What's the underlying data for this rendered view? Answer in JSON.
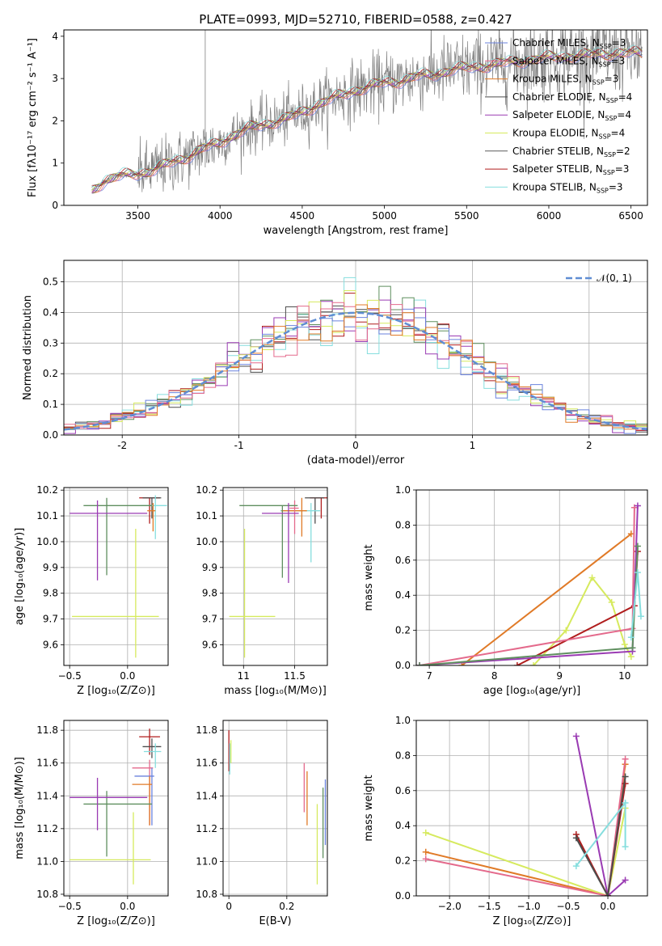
{
  "title": "PLATE=0993, MJD=52710, FIBERID=0588, z=0.427",
  "legend": [
    {
      "label": "Chabrier MILES, N",
      "sub": "SSP",
      "tail": "=3"
    },
    {
      "label": "Salpeter MILES, N",
      "sub": "SSP",
      "tail": "=3"
    },
    {
      "label": "Kroupa MILES, N",
      "sub": "SSP",
      "tail": "=3"
    },
    {
      "label": "Chabrier ELODIE, N",
      "sub": "SSP",
      "tail": "=4"
    },
    {
      "label": "Salpeter ELODIE, N",
      "sub": "SSP",
      "tail": "=4"
    },
    {
      "label": "Kroupa ELODIE, N",
      "sub": "SSP",
      "tail": "=4"
    },
    {
      "label": "Chabrier STELIB, N",
      "sub": "SSP",
      "tail": "=2"
    },
    {
      "label": "Salpeter STELIB, N",
      "sub": "SSP",
      "tail": "=3"
    },
    {
      "label": "Kroupa STELIB, N",
      "sub": "SSP",
      "tail": "=3"
    }
  ],
  "colors": {
    "data": "#808080",
    "models": [
      "#6a82dd",
      "#e46a8c",
      "#e07a27",
      "#4d4d4d",
      "#9a3bb3",
      "#d6ea5e",
      "#5a5a5a",
      "#b01d1d",
      "#86dede"
    ],
    "fit_models": [
      "#4d4d4d",
      "#b01d1d",
      "#86dede",
      "#5f8f5f",
      "#9a3bb3",
      "#d6ea5e",
      "#6a82dd",
      "#e46a8c",
      "#e07a27"
    ],
    "normal_curve": "#5f8dd3"
  },
  "chart_data": [
    {
      "type": "line",
      "name": "spectrum",
      "xlabel": "wavelength [Angstrom, rest frame]",
      "ylabel": "Flux [fλ10⁻¹⁷ erg cm⁻² s⁻¹ A⁻¹]",
      "xlim": [
        3050,
        6600
      ],
      "ylim": [
        0,
        4.15
      ],
      "xticks": [
        3500,
        4000,
        4500,
        5000,
        5500,
        6000,
        6500
      ],
      "yticks": [
        0,
        1,
        2,
        3,
        4
      ],
      "continuum": [
        [
          3220,
          0.35
        ],
        [
          3300,
          0.6
        ],
        [
          3400,
          0.7
        ],
        [
          3500,
          0.75
        ],
        [
          3600,
          0.85
        ],
        [
          3700,
          1.0
        ],
        [
          3800,
          1.15
        ],
        [
          3900,
          1.35
        ],
        [
          3980,
          1.45
        ],
        [
          4100,
          1.7
        ],
        [
          4200,
          1.85
        ],
        [
          4300,
          1.95
        ],
        [
          4400,
          2.05
        ],
        [
          4500,
          2.2
        ],
        [
          4600,
          2.4
        ],
        [
          4700,
          2.55
        ],
        [
          4800,
          2.7
        ],
        [
          4900,
          2.8
        ],
        [
          5000,
          2.9
        ],
        [
          5100,
          2.95
        ],
        [
          5200,
          3.05
        ],
        [
          5300,
          3.1
        ],
        [
          5400,
          3.2
        ],
        [
          5500,
          3.25
        ],
        [
          5600,
          3.3
        ],
        [
          5700,
          3.35
        ],
        [
          5800,
          3.4
        ],
        [
          6000,
          3.5
        ],
        [
          6200,
          3.55
        ],
        [
          6400,
          3.6
        ],
        [
          6570,
          3.6
        ]
      ],
      "data_range": [
        3220,
        6570
      ]
    },
    {
      "type": "bar",
      "name": "residual histograms",
      "xlabel": "(data-model)/error",
      "ylabel": "Normed distribution",
      "xlim": [
        -2.5,
        2.5
      ],
      "ylim": [
        0,
        0.57
      ],
      "xticks": [
        -2,
        -1,
        0,
        1,
        2
      ],
      "yticks": [
        0.0,
        0.1,
        0.2,
        0.3,
        0.4,
        0.5
      ],
      "bin_width": 0.1,
      "legend": "𝒩(0, 1)",
      "curve": "normal pdf, mean 0, sigma 1"
    },
    {
      "type": "scatter",
      "name": "age vs Z",
      "xlabel": "Z [log₁₀(Z/Z⊙)]",
      "ylabel": "age  [log₁₀(age/yr)]",
      "xlim": [
        -0.55,
        0.35
      ],
      "ylim": [
        9.52,
        10.21
      ],
      "xticks": [
        -0.5,
        0.0
      ],
      "xtick_labels": [
        "−0.5",
        "0.0"
      ],
      "yticks": [
        9.6,
        9.7,
        9.8,
        9.9,
        10.0,
        10.1,
        10.2
      ],
      "points": [
        {
          "x": 0.19,
          "y": 10.17,
          "xerr": [
            0.09,
            0.09
          ],
          "yerr": [
            0.1,
            0.0
          ]
        },
        {
          "x": 0.21,
          "y": 10.17,
          "xerr": [
            0.08,
            0.08
          ],
          "yerr": [
            0.08,
            0.0
          ]
        },
        {
          "x": 0.24,
          "y": 10.14,
          "xerr": [
            0.13,
            0.1
          ],
          "yerr": [
            0.13,
            0.04
          ]
        },
        {
          "x": 0.22,
          "y": 10.12,
          "xerr": [
            0.05,
            0.02
          ],
          "yerr": [
            0.08,
            0.03
          ]
        },
        {
          "x": -0.18,
          "y": 10.14,
          "xerr": [
            0.2,
            0.39
          ],
          "yerr": [
            0.27,
            0.03
          ]
        },
        {
          "x": -0.26,
          "y": 10.11,
          "xerr": [
            0.24,
            0.43
          ],
          "yerr": [
            0.26,
            0.05
          ]
        },
        {
          "x": 0.07,
          "y": 9.71,
          "xerr": [
            0.55,
            0.2
          ],
          "yerr": [
            0.16,
            0.34
          ]
        }
      ]
    },
    {
      "type": "scatter",
      "name": "age vs mass",
      "xlabel": "mass [log₁₀(M/M⊙)]",
      "ylabel": "",
      "xlim": [
        10.8,
        11.82
      ],
      "ylim": [
        9.52,
        10.21
      ],
      "xticks": [
        11.0,
        11.5
      ],
      "yticks": [
        9.6,
        9.7,
        9.8,
        9.9,
        10.0,
        10.1,
        10.2
      ],
      "points": [
        {
          "x": 11.76,
          "y": 10.17,
          "xerr": [
            0.11,
            0.07
          ],
          "yerr": [
            0.08,
            0.0
          ]
        },
        {
          "x": 11.7,
          "y": 10.17,
          "xerr": [
            0.1,
            0.09
          ],
          "yerr": [
            0.1,
            0.0
          ]
        },
        {
          "x": 11.66,
          "y": 10.12,
          "xerr": [
            0.3,
            0.09
          ],
          "yerr": [
            0.2,
            0.03
          ]
        },
        {
          "x": 11.57,
          "y": 10.12,
          "xerr": [
            0.2,
            0.05
          ],
          "yerr": [
            0.1,
            0.05
          ]
        },
        {
          "x": 11.5,
          "y": 10.13,
          "xerr": [
            0.05,
            0.04
          ],
          "yerr": [
            0.1,
            0.03
          ]
        },
        {
          "x": 11.38,
          "y": 10.14,
          "xerr": [
            0.42,
            0.15
          ],
          "yerr": [
            0.28,
            0.0
          ]
        },
        {
          "x": 11.44,
          "y": 10.11,
          "xerr": [
            0.26,
            0.1
          ],
          "yerr": [
            0.27,
            0.04
          ]
        },
        {
          "x": 11.01,
          "y": 9.71,
          "xerr": [
            0.15,
            0.3
          ],
          "yerr": [
            0.16,
            0.34
          ]
        }
      ]
    },
    {
      "type": "line",
      "name": "mass weight vs age",
      "xlabel": "age  [log₁₀(age/yr)]",
      "ylabel": "mass weight",
      "xlim": [
        6.8,
        10.35
      ],
      "ylim": [
        0,
        1.0
      ],
      "xticks": [
        7,
        8,
        9,
        10
      ],
      "yticks": [
        0.0,
        0.2,
        0.4,
        0.6,
        0.8,
        1.0
      ],
      "series": [
        {
          "x": [
            7.5,
            10.1
          ],
          "y": [
            0.0,
            0.75
          ]
        },
        {
          "x": [
            8.6,
            9.1,
            9.5,
            9.8,
            10.0,
            10.1
          ],
          "y": [
            0.0,
            0.2,
            0.5,
            0.36,
            0.12,
            0.05
          ]
        },
        {
          "x": [
            8.35,
            10.15,
            10.2
          ],
          "y": [
            0.0,
            0.34,
            0.65
          ]
        },
        {
          "x": [
            6.85,
            10.12,
            10.15
          ],
          "y": [
            0.0,
            0.21,
            0.9
          ]
        },
        {
          "x": [
            6.85,
            10.12,
            10.2
          ],
          "y": [
            0.0,
            0.08,
            0.91
          ]
        },
        {
          "x": [
            6.85,
            10.12,
            10.2
          ],
          "y": [
            0.0,
            0.1,
            0.68
          ]
        },
        {
          "x": [
            10.1,
            10.2,
            10.25
          ],
          "y": [
            0.16,
            0.53,
            0.28
          ]
        }
      ]
    },
    {
      "type": "scatter",
      "name": "mass vs Z",
      "xlabel": "Z [log₁₀(Z/Z⊙)]",
      "ylabel": "mass [log₁₀(M/M⊙)]",
      "xlim": [
        -0.55,
        0.35
      ],
      "ylim": [
        10.79,
        11.86
      ],
      "xticks": [
        -0.5,
        0.0
      ],
      "xtick_labels": [
        "−0.5",
        "0.0"
      ],
      "yticks": [
        10.8,
        11.0,
        11.2,
        11.4,
        11.6,
        11.8
      ],
      "points": [
        {
          "x": 0.19,
          "y": 11.76,
          "xerr": [
            0.09,
            0.09
          ],
          "yerr": [
            0.11,
            0.05
          ]
        },
        {
          "x": 0.21,
          "y": 11.7,
          "xerr": [
            0.08,
            0.08
          ],
          "yerr": [
            0.07,
            0.05
          ]
        },
        {
          "x": 0.24,
          "y": 11.67,
          "xerr": [
            0.1,
            0.05
          ],
          "yerr": [
            0.1,
            0.05
          ]
        },
        {
          "x": 0.19,
          "y": 11.57,
          "xerr": [
            0.15,
            0.03
          ],
          "yerr": [
            0.35,
            0.05
          ]
        },
        {
          "x": 0.21,
          "y": 11.52,
          "xerr": [
            0.15,
            0.02
          ],
          "yerr": [
            0.3,
            0.05
          ]
        },
        {
          "x": 0.19,
          "y": 11.47,
          "xerr": [
            0.15,
            0.02
          ],
          "yerr": [
            0.25,
            0.05
          ]
        },
        {
          "x": -0.18,
          "y": 11.35,
          "xerr": [
            0.2,
            0.39
          ],
          "yerr": [
            0.32,
            0.08
          ]
        },
        {
          "x": -0.26,
          "y": 11.39,
          "xerr": [
            0.24,
            0.43
          ],
          "yerr": [
            0.2,
            0.12
          ]
        },
        {
          "x": 0.05,
          "y": 11.01,
          "xerr": [
            0.55,
            0.15
          ],
          "yerr": [
            0.15,
            0.29
          ]
        }
      ]
    },
    {
      "type": "scatter",
      "name": "mass vs E(B-V)",
      "xlabel": "E(B-V)",
      "ylabel": "",
      "xlim": [
        -0.02,
        0.34
      ],
      "ylim": [
        10.79,
        11.86
      ],
      "xticks": [
        0.0,
        0.2
      ],
      "yticks": [
        10.8,
        11.0,
        11.2,
        11.4,
        11.6,
        11.8
      ],
      "segments": [
        {
          "x": 0.0,
          "y1": 11.55,
          "y2": 11.8
        },
        {
          "x": 0.003,
          "y1": 11.53,
          "y2": 11.72
        },
        {
          "x": 0.007,
          "y1": 11.6,
          "y2": 11.74
        },
        {
          "x": 0.26,
          "y1": 11.3,
          "y2": 11.6
        },
        {
          "x": 0.27,
          "y1": 11.22,
          "y2": 11.55
        },
        {
          "x": 0.305,
          "y1": 10.86,
          "y2": 11.35
        },
        {
          "x": 0.325,
          "y1": 11.02,
          "y2": 11.45
        },
        {
          "x": 0.333,
          "y1": 11.1,
          "y2": 11.5
        }
      ]
    },
    {
      "type": "line",
      "name": "mass weight vs Z",
      "xlabel": "Z [log₁₀(Z/Z⊙)]",
      "ylabel": "mass weight",
      "xlim": [
        -2.42,
        0.5
      ],
      "ylim": [
        0,
        1.0
      ],
      "xticks": [
        -2.0,
        -1.5,
        -1.0,
        -0.5,
        0.0
      ],
      "xtick_labels": [
        "−2.0",
        "−1.5",
        "−1.0",
        "−0.5",
        "0.0"
      ],
      "yticks": [
        0.0,
        0.2,
        0.4,
        0.6,
        0.8,
        1.0
      ],
      "series": [
        {
          "x": [
            -2.3,
            0.0,
            0.22
          ],
          "y": [
            0.25,
            0.0,
            0.75
          ]
        },
        {
          "x": [
            -2.3,
            0.0,
            0.22
          ],
          "y": [
            0.36,
            0.0,
            0.5
          ]
        },
        {
          "x": [
            -2.3,
            0.0,
            0.22
          ],
          "y": [
            0.21,
            0.0,
            0.78
          ]
        },
        {
          "x": [
            -0.4,
            0.0,
            0.22
          ],
          "y": [
            0.91,
            0.0,
            0.09
          ]
        },
        {
          "x": [
            -0.4,
            0.0,
            0.22
          ],
          "y": [
            0.35,
            0.0,
            0.64
          ]
        },
        {
          "x": [
            -0.4,
            0.0,
            0.22
          ],
          "y": [
            0.33,
            0.0,
            0.68
          ]
        },
        {
          "x": [
            -0.4,
            0.22,
            0.22
          ],
          "y": [
            0.17,
            0.53,
            0.28
          ]
        }
      ]
    }
  ]
}
